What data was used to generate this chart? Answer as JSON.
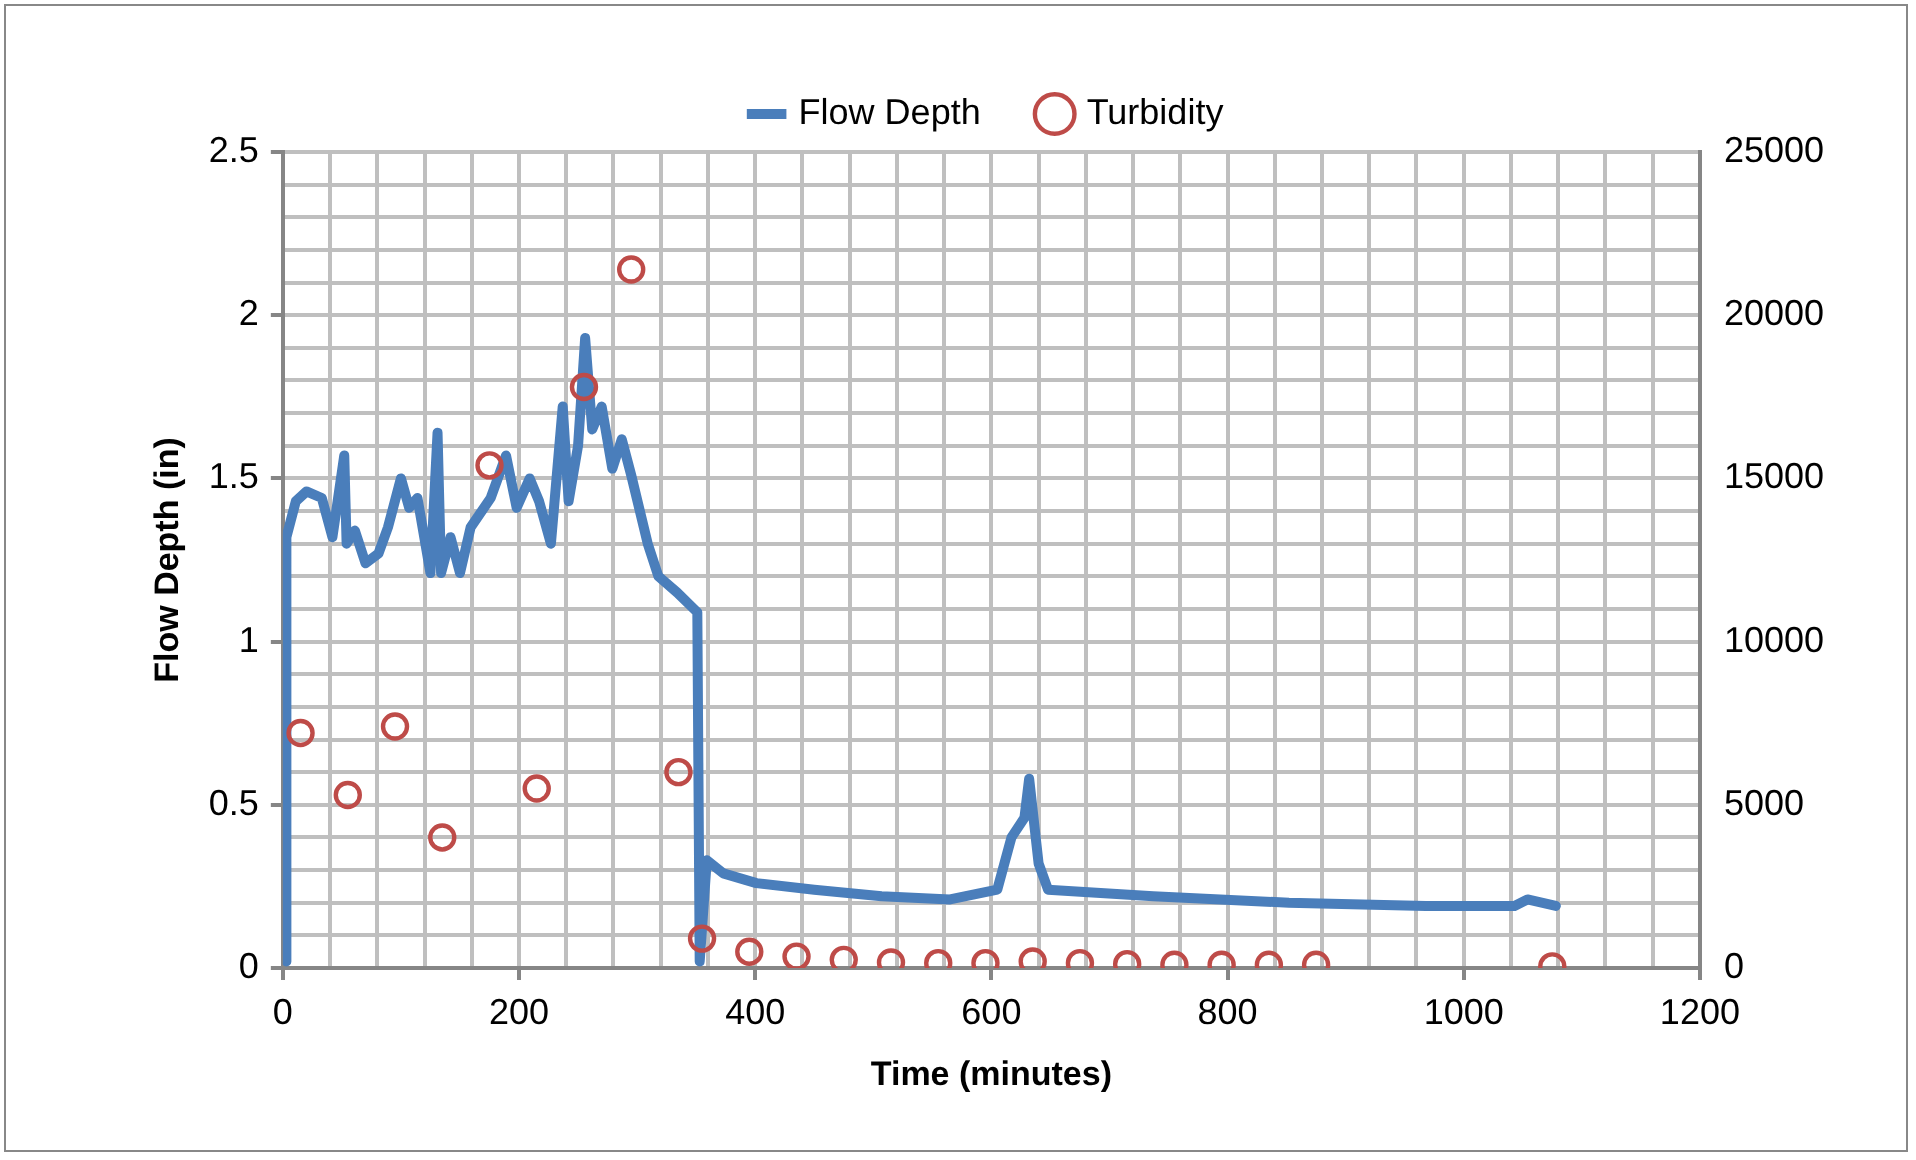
{
  "chart_data": {
    "type": "line",
    "xlabel": "Time (minutes)",
    "ylabel": "Flow Depth (in)",
    "grid": true,
    "legend": "top",
    "xlim": [
      0,
      1200
    ],
    "xticks": [
      0,
      {
        "value": 40,
        "label": null
      },
      {
        "value": 80,
        "label": null
      },
      {
        "value": 120,
        "label": null
      },
      {
        "value": 160,
        "label": null
      },
      200,
      {
        "value": 240,
        "label": null
      },
      {
        "value": 280,
        "label": null
      },
      {
        "value": 320,
        "label": null
      },
      {
        "value": 360,
        "label": null
      },
      400,
      {
        "value": 440,
        "label": null
      },
      {
        "value": 480,
        "label": null
      },
      {
        "value": 520,
        "label": null
      },
      {
        "value": 560,
        "label": null
      },
      600,
      {
        "value": 640,
        "label": null
      },
      {
        "value": 680,
        "label": null
      },
      {
        "value": 720,
        "label": null
      },
      {
        "value": 760,
        "label": null
      },
      800,
      {
        "value": 840,
        "label": null
      },
      {
        "value": 880,
        "label": null
      },
      {
        "value": 920,
        "label": null
      },
      {
        "value": 960,
        "label": null
      },
      1000,
      {
        "value": 1040,
        "label": null
      },
      {
        "value": 1080,
        "label": null
      },
      {
        "value": 1120,
        "label": null
      },
      {
        "value": 1160,
        "label": null
      },
      1200
    ],
    "ylim": [
      0,
      2.5
    ],
    "yticks": [
      0,
      {
        "value": 0.1,
        "label": null
      },
      {
        "value": 0.2,
        "label": null
      },
      {
        "value": 0.3,
        "label": null
      },
      {
        "value": 0.4,
        "label": null
      },
      0.5,
      {
        "value": 0.6,
        "label": null
      },
      {
        "value": 0.7,
        "label": null
      },
      {
        "value": 0.8,
        "label": null
      },
      {
        "value": 0.9,
        "label": null
      },
      1,
      {
        "value": 1.1,
        "label": null
      },
      {
        "value": 1.2,
        "label": null
      },
      {
        "value": 1.3,
        "label": null
      },
      {
        "value": 1.4,
        "label": null
      },
      1.5,
      {
        "value": 1.6,
        "label": null
      },
      {
        "value": 1.7,
        "label": null
      },
      {
        "value": 1.8,
        "label": null
      },
      {
        "value": 1.9,
        "label": null
      },
      2,
      {
        "value": 2.1,
        "label": null
      },
      {
        "value": 2.2,
        "label": null
      },
      {
        "value": 2.3,
        "label": null
      },
      {
        "value": 2.4,
        "label": null
      },
      2.5
    ],
    "y2lim": [
      0,
      25000
    ],
    "y2ticks": [
      0,
      5000,
      10000,
      15000,
      20000,
      25000
    ],
    "series": [
      {
        "name": "Flow Depth",
        "type": "line",
        "marker": "none",
        "color": "#4a7ebb",
        "x": [
          3,
          3,
          11,
          20,
          33,
          42,
          52,
          54,
          61,
          70,
          81,
          89,
          100,
          107,
          114,
          125,
          131,
          134,
          142,
          150,
          159,
          176,
          189,
          198,
          209,
          217,
          227,
          237,
          242,
          250,
          256,
          262,
          270,
          279,
          287,
          295,
          309,
          318,
          334,
          351,
          353,
          359,
          373,
          401,
          450,
          507,
          565,
          605,
          617,
          628,
          632,
          640,
          648,
          737,
          852,
          968,
          1043,
          1054,
          1078
        ],
        "values": [
          0.02,
          1.32,
          1.43,
          1.46,
          1.44,
          1.32,
          1.57,
          1.3,
          1.34,
          1.24,
          1.27,
          1.35,
          1.5,
          1.41,
          1.44,
          1.21,
          1.64,
          1.21,
          1.32,
          1.21,
          1.35,
          1.44,
          1.57,
          1.41,
          1.5,
          1.43,
          1.3,
          1.72,
          1.43,
          1.6,
          1.93,
          1.65,
          1.72,
          1.53,
          1.62,
          1.51,
          1.3,
          1.2,
          1.15,
          1.09,
          0.02,
          0.33,
          0.29,
          0.26,
          0.24,
          0.22,
          0.21,
          0.24,
          0.4,
          0.46,
          0.58,
          0.32,
          0.24,
          0.22,
          0.2,
          0.19,
          0.19,
          0.21,
          0.19
        ]
      },
      {
        "name": "Turbidity",
        "type": "scatter",
        "axis": "y2",
        "marker": "circle",
        "color": "#be4b48",
        "x": [
          15,
          55,
          95,
          135,
          175,
          215,
          255,
          295,
          335,
          355,
          395,
          435,
          475,
          515,
          555,
          595,
          635,
          675,
          715,
          755,
          795,
          835,
          875,
          1075
        ],
        "values": [
          7200,
          5300,
          7400,
          4000,
          15400,
          5500,
          17800,
          21400,
          6000,
          900,
          500,
          350,
          250,
          170,
          150,
          150,
          200,
          150,
          120,
          100,
          100,
          100,
          100,
          50
        ]
      }
    ]
  }
}
